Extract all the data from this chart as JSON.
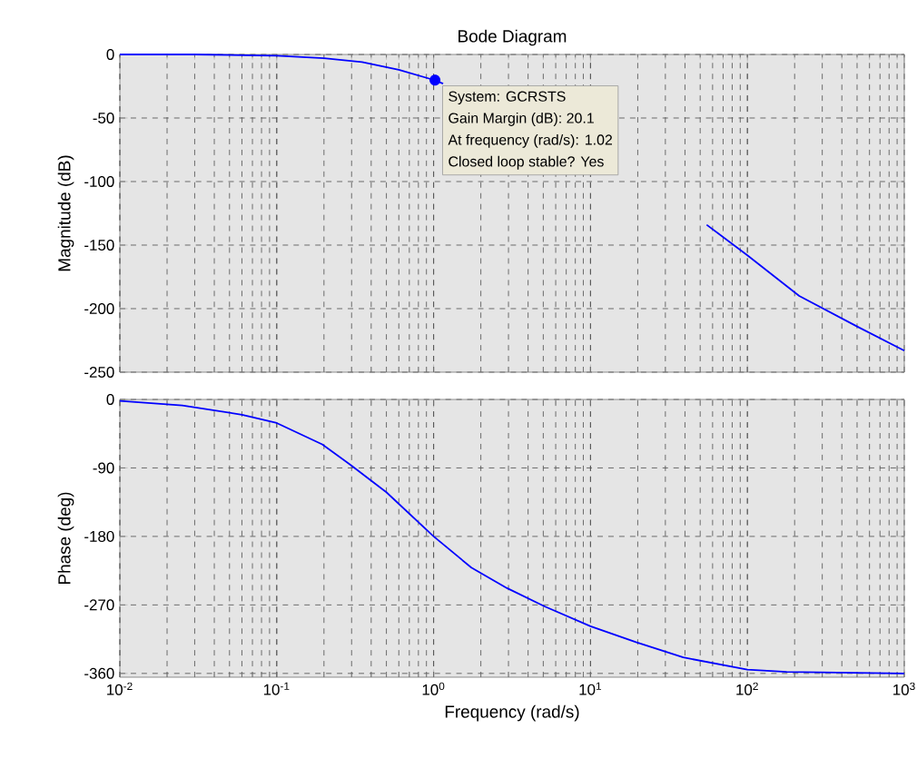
{
  "chart_data": [
    {
      "type": "line",
      "title": "Bode Diagram",
      "ylabel": "Magnitude (dB)",
      "log": "x",
      "grid": true,
      "tick_labels": "y",
      "marker": "none",
      "line_style": "solid",
      "xlim": [
        0.01,
        1000
      ],
      "ylim": [
        -250,
        0
      ],
      "xticks": [
        {
          "value": 0.01,
          "label": null
        },
        {
          "value": 0.1,
          "label": null
        },
        {
          "value": 1,
          "label": null
        },
        {
          "value": 10,
          "label": null
        },
        {
          "value": 100,
          "label": null
        },
        {
          "value": 1000,
          "label": null
        }
      ],
      "yticks": [
        -250,
        -200,
        -150,
        -100,
        -50,
        0
      ],
      "series": [
        {
          "color": "#0000ff",
          "x": [
            0.01,
            0.03,
            0.1,
            0.2,
            0.35,
            0.6,
            1,
            1.15,
            3,
            10,
            30,
            55,
            100,
            214,
            500,
            1000
          ],
          "values": [
            0,
            0,
            -1,
            -3,
            -6,
            -12,
            -20,
            -23,
            null,
            null,
            null,
            -134,
            -158,
            -190,
            -214,
            -233
          ]
        }
      ],
      "annotations": [
        {
          "text": "System: GCRSTS",
          "x": 1.02,
          "y": -20.1
        },
        "Gain Margin (dB): 20.1",
        "At frequency (rad/s): 1.02",
        "Closed loop stable? Yes"
      ]
    },
    {
      "type": "line",
      "xlabel": "Frequency  (rad/s)",
      "ylabel": "Phase (deg)",
      "log": "x",
      "grid": true,
      "marker": "none",
      "line_style": "solid",
      "xlim": [
        0.01,
        1000
      ],
      "ylim": [
        -365,
        0
      ],
      "xticks": [
        {
          "value": 0.01,
          "label": "10$^{-2}$"
        },
        {
          "value": 0.1,
          "label": "10$^{-1}$"
        },
        {
          "value": 1,
          "label": "10$^{0}$"
        },
        {
          "value": 10,
          "label": "10$^{1}$"
        },
        {
          "value": 100,
          "label": "10$^{2}$"
        },
        {
          "value": 1000,
          "label": "10$^{3}$"
        }
      ],
      "yticks": [
        -360,
        -270,
        -180,
        -90,
        0
      ],
      "series": [
        {
          "color": "#0000ff",
          "x": [
            0.01,
            0.025,
            0.06,
            0.1,
            0.195,
            0.3,
            0.5,
            1,
            1.74,
            2.94,
            5.1,
            10,
            19.5,
            39,
            100,
            178,
            1000
          ],
          "values": [
            -2,
            -8,
            -20,
            -31,
            -59,
            -87,
            -122,
            -180,
            -221,
            -248,
            -272,
            -298,
            -319,
            -339,
            -355,
            -358,
            -360
          ]
        }
      ]
    }
  ]
}
